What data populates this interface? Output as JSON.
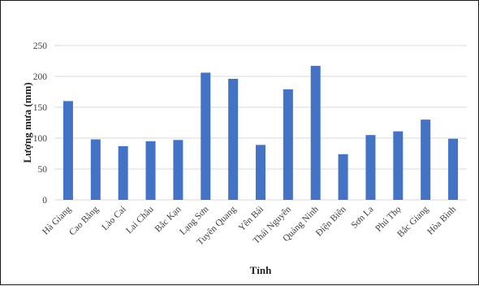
{
  "chart_data": {
    "type": "bar",
    "title": "",
    "xlabel": "Tỉnh",
    "ylabel": "Lượng mưa (mm)",
    "categories": [
      "Hà Giang",
      "Cao Bằng",
      "Lào Cai",
      "Lai Châu",
      "Bắc Kạn",
      "Lạng Sơn",
      "Tuyên Quang",
      "Yên Bái",
      "Thái Nguyên",
      "Quảng Ninh",
      "Điện Biên",
      "Sơn La",
      "Phú Thọ",
      "Bắc Giang",
      "Hòa Bình"
    ],
    "values": [
      160,
      98,
      87,
      95,
      97,
      206,
      196,
      89,
      179,
      217,
      74,
      105,
      111,
      130,
      99
    ],
    "ylim": [
      0,
      250
    ],
    "yticks": [
      0,
      50,
      100,
      150,
      200,
      250
    ],
    "grid": true,
    "legend": "none",
    "bar_color": "#4472C4",
    "grid_color": "#d9d9d9"
  }
}
